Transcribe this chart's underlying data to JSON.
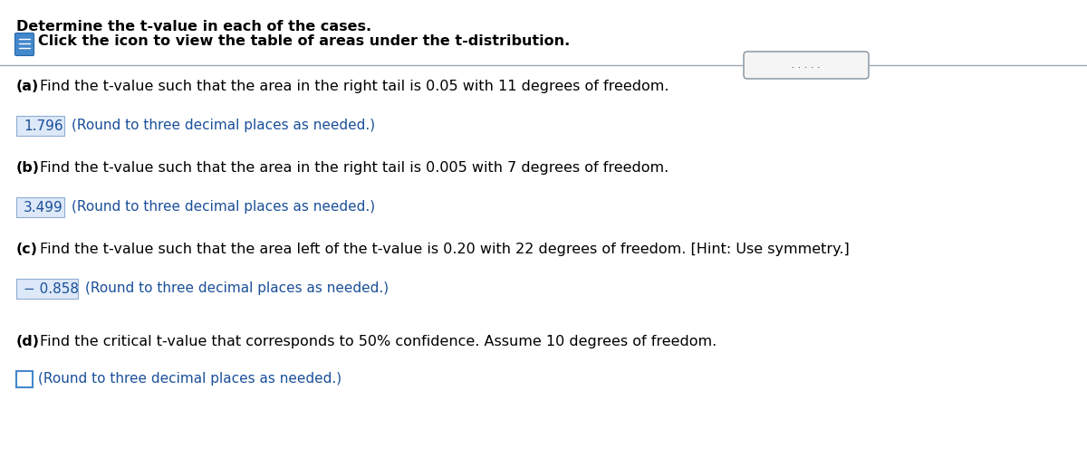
{
  "title": "Determine the t-value in each of the cases.",
  "subtitle": "Click the icon to view the table of areas under the t-distribution.",
  "icon_dots": " . . . . . ",
  "background_color": "#ffffff",
  "text_color": "#000000",
  "blue_text_color": "#1a4f99",
  "answer_box_bg": "#dde8f8",
  "answer_box_border": "#8eadd4",
  "separator_color": "#a0a8b0",
  "dots_btn_bg": "#f5f5f5",
  "dots_btn_border": "#8090a0",
  "icon_color": "#4488cc",
  "parts": [
    {
      "label": "(a)",
      "question": "Find the t-value such that the area in the right tail is 0.05 with 11 degrees of freedom.",
      "answer": "1.796",
      "hint": "(Round to three decimal places as needed.)"
    },
    {
      "label": "(b)",
      "question": "Find the t-value such that the area in the right tail is 0.005 with 7 degrees of freedom.",
      "answer": "3.499",
      "hint": "(Round to three decimal places as needed.)"
    },
    {
      "label": "(c)",
      "question": "Find the t-value such that the area left of the t-value is 0.20 with 22 degrees of freedom. [Hint: Use symmetry.]",
      "answer": "− 0.858",
      "hint": "(Round to three decimal places as needed.)"
    },
    {
      "label": "(d)",
      "question": "Find the critical t-value that corresponds to 50% confidence. Assume 10 degrees of freedom.",
      "answer": "",
      "hint": "(Round to three decimal places as needed.)"
    }
  ]
}
